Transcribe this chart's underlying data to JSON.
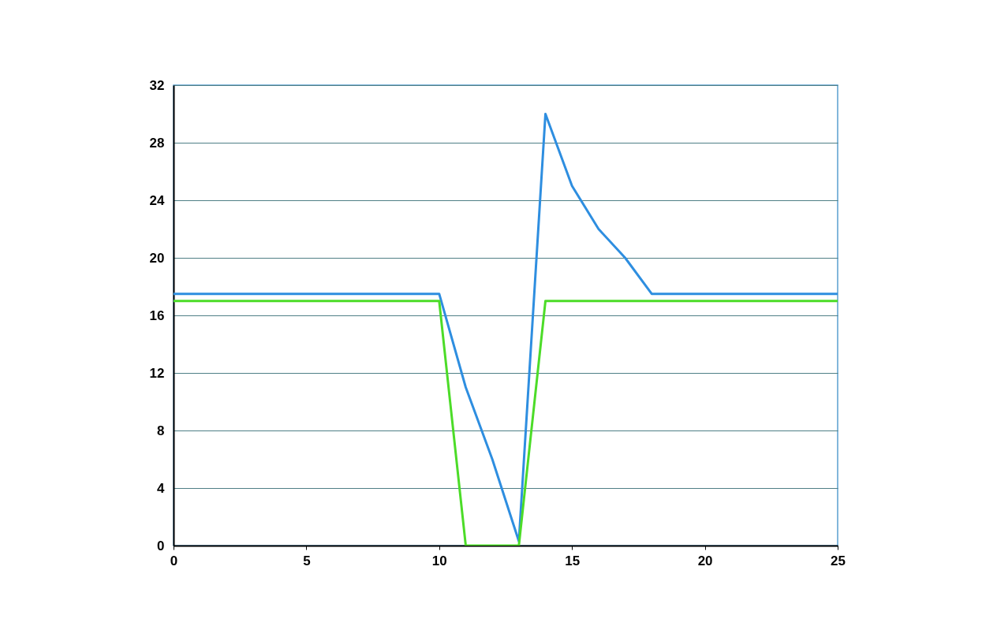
{
  "chart_data": {
    "type": "line",
    "xlim": [
      0,
      25
    ],
    "ylim": [
      0,
      32
    ],
    "xticks": [
      0,
      5,
      10,
      15,
      20,
      25
    ],
    "yticks": [
      0,
      4,
      8,
      12,
      16,
      20,
      24,
      28,
      32
    ],
    "grid": "y",
    "series": [
      {
        "color": "#2e8ee0",
        "x": [
          0,
          10,
          11,
          12,
          13,
          14,
          15,
          16,
          17,
          18,
          25
        ],
        "values": [
          17.5,
          17.5,
          11,
          6,
          0.3,
          30,
          25,
          22,
          20,
          17.5,
          17.5
        ]
      },
      {
        "color": "#4cdc28",
        "x": [
          0,
          10,
          11,
          13,
          14,
          25
        ],
        "values": [
          17,
          17,
          0,
          0,
          17,
          17
        ]
      }
    ]
  }
}
